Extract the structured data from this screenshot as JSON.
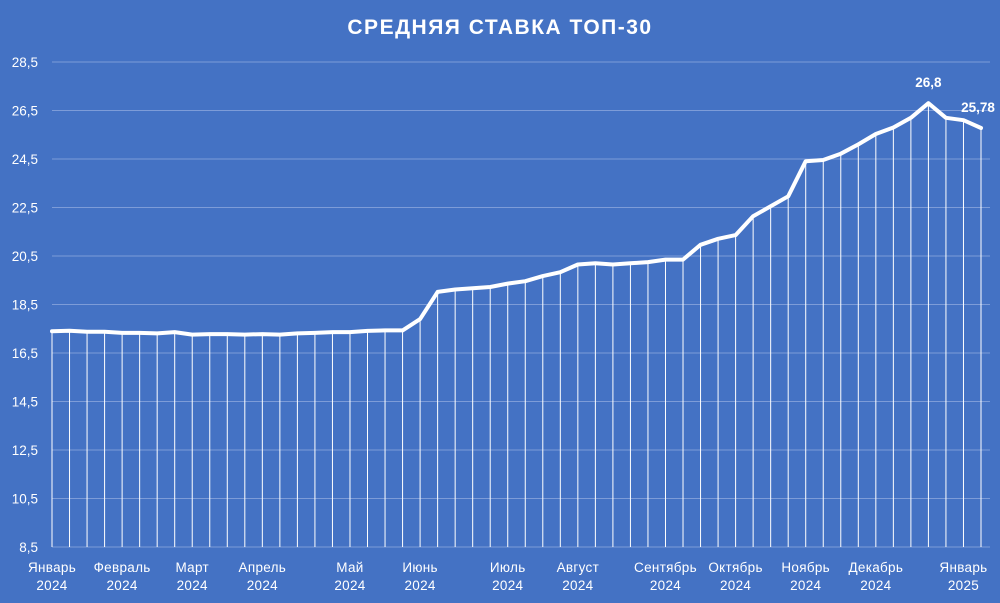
{
  "chart_data": {
    "type": "line",
    "title": "СРЕДНЯЯ СТАВКА ТОП-30",
    "xlabel": "",
    "ylabel": "",
    "ylim": [
      8.5,
      28.5
    ],
    "yticks": [
      8.5,
      10.5,
      12.5,
      14.5,
      16.5,
      18.5,
      20.5,
      22.5,
      24.5,
      26.5,
      28.5
    ],
    "ytick_labels": [
      "8,5",
      "10,5",
      "12,5",
      "14,5",
      "16,5",
      "18,5",
      "20,5",
      "22,5",
      "24,5",
      "26,5",
      "28,5"
    ],
    "grid": "horizontal",
    "drop_lines": true,
    "month_labels": [
      {
        "month": "Январь",
        "year": "2024",
        "index": 0
      },
      {
        "month": "Февраль",
        "year": "2024",
        "index": 4
      },
      {
        "month": "Март",
        "year": "2024",
        "index": 8
      },
      {
        "month": "Апрель",
        "year": "2024",
        "index": 12
      },
      {
        "month": "Май",
        "year": "2024",
        "index": 17
      },
      {
        "month": "Июнь",
        "year": "2024",
        "index": 21
      },
      {
        "month": "Июль",
        "year": "2024",
        "index": 26
      },
      {
        "month": "Август",
        "year": "2024",
        "index": 30
      },
      {
        "month": "Сентябрь",
        "year": "2024",
        "index": 35
      },
      {
        "month": "Октябрь",
        "year": "2024",
        "index": 39
      },
      {
        "month": "Ноябрь",
        "year": "2024",
        "index": 43
      },
      {
        "month": "Декабрь",
        "year": "2024",
        "index": 47
      },
      {
        "month": "Январь",
        "year": "2025",
        "index": 52
      }
    ],
    "series": [
      {
        "values": [
          17.4,
          17.42,
          17.38,
          17.38,
          17.33,
          17.33,
          17.31,
          17.36,
          17.26,
          17.28,
          17.28,
          17.26,
          17.28,
          17.26,
          17.31,
          17.33,
          17.36,
          17.36,
          17.41,
          17.43,
          17.43,
          17.9,
          19.02,
          19.12,
          19.17,
          19.22,
          19.36,
          19.46,
          19.67,
          19.83,
          20.15,
          20.2,
          20.15,
          20.2,
          20.25,
          20.35,
          20.35,
          20.96,
          21.21,
          21.36,
          22.14,
          22.55,
          22.96,
          24.41,
          24.46,
          24.72,
          25.1,
          25.53,
          25.8,
          26.2,
          26.8,
          26.2,
          26.1,
          25.78
        ],
        "annotations": [
          {
            "index": 50,
            "label": "26,8"
          },
          {
            "index": 53,
            "label": "25,78"
          }
        ]
      }
    ]
  }
}
